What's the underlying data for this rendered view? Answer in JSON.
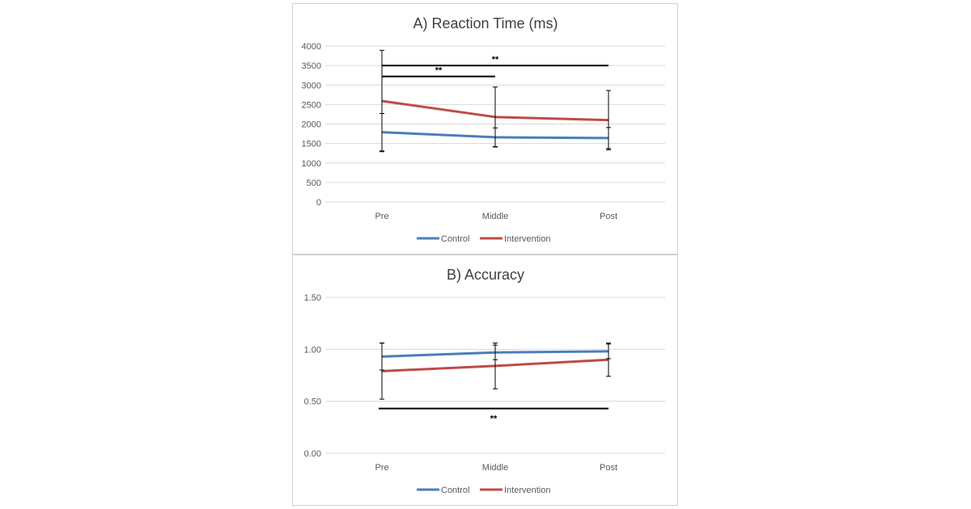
{
  "chart_data": [
    {
      "type": "line",
      "title": "A) Reaction Time (ms)",
      "categories": [
        "Pre",
        "Middle",
        "Post"
      ],
      "y_ticks": [
        "0",
        "500",
        "1000",
        "1500",
        "2000",
        "2500",
        "3000",
        "3500",
        "4000"
      ],
      "ylim": [
        0,
        4000
      ],
      "grid": true,
      "legend_position": "bottom",
      "series": [
        {
          "name": "Control",
          "color": "#4a7ebb",
          "values": [
            1790,
            1660,
            1640
          ],
          "error": [
            480,
            240,
            270
          ]
        },
        {
          "name": "Intervention",
          "color": "#be4b48",
          "values": [
            2590,
            2180,
            2100
          ],
          "error": [
            1300,
            770,
            760
          ]
        }
      ],
      "significance": [
        {
          "from": "Pre",
          "to": "Post",
          "y": 3500,
          "label": "**"
        },
        {
          "from": "Pre",
          "to": "Middle",
          "y": 3220,
          "label": "**"
        }
      ]
    },
    {
      "type": "line",
      "title": "B) Accuracy",
      "categories": [
        "Pre",
        "Middle",
        "Post"
      ],
      "y_ticks": [
        "0.00",
        "0.50",
        "1.00",
        "1.50"
      ],
      "ylim": [
        0,
        1.5
      ],
      "grid": true,
      "legend_position": "bottom",
      "series": [
        {
          "name": "Control",
          "color": "#4a7ebb",
          "values": [
            0.93,
            0.97,
            0.98
          ],
          "error": [
            0.13,
            0.07,
            0.07
          ]
        },
        {
          "name": "Intervention",
          "color": "#be4b48",
          "values": [
            0.79,
            0.84,
            0.9
          ],
          "error": [
            0.27,
            0.22,
            0.16
          ]
        }
      ],
      "significance": [
        {
          "from": "Pre",
          "to": "Post",
          "y": 0.43,
          "label": "**",
          "label_position": "below"
        }
      ]
    }
  ]
}
